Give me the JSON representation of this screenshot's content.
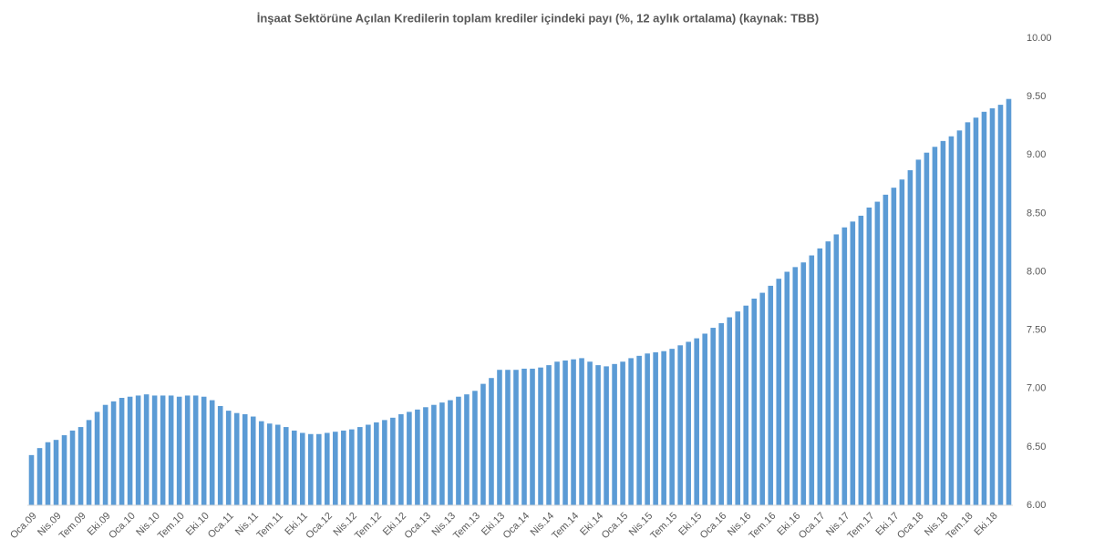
{
  "chart_data": {
    "type": "bar",
    "title": "İnşaat Sektörüne Açılan Kredilerin toplam krediler içindeki payı (%, 12 aylık ortalama) (kaynak: TBB)",
    "categories": [
      "Oca.09",
      null,
      null,
      "Nis.09",
      null,
      null,
      "Tem.09",
      null,
      null,
      "Eki.09",
      null,
      null,
      "Oca.10",
      null,
      null,
      "Nis.10",
      null,
      null,
      "Tem.10",
      null,
      null,
      "Eki.10",
      null,
      null,
      "Oca.11",
      null,
      null,
      "Nis.11",
      null,
      null,
      "Tem.11",
      null,
      null,
      "Eki.11",
      null,
      null,
      "Oca.12",
      null,
      null,
      "Nis.12",
      null,
      null,
      "Tem.12",
      null,
      null,
      "Eki.12",
      null,
      null,
      "Oca.13",
      null,
      null,
      "Nis.13",
      null,
      null,
      "Tem.13",
      null,
      null,
      "Eki.13",
      null,
      null,
      "Oca.14",
      null,
      null,
      "Nis.14",
      null,
      null,
      "Tem.14",
      null,
      null,
      "Eki.14",
      null,
      null,
      "Oca.15",
      null,
      null,
      "Nis.15",
      null,
      null,
      "Tem.15",
      null,
      null,
      "Eki.15",
      null,
      null,
      "Oca.16",
      null,
      null,
      "Nis.16",
      null,
      null,
      "Tem.16",
      null,
      null,
      "Eki.16",
      null,
      null,
      "Oca.17",
      null,
      null,
      "Nis.17",
      null,
      null,
      "Tem.17",
      null,
      null,
      "Eki.17",
      null,
      null,
      "Oca.18",
      null,
      null,
      "Nis.18",
      null,
      null,
      "Tem.18",
      null,
      null,
      "Eki.18",
      null,
      null
    ],
    "values": [
      6.43,
      6.49,
      6.54,
      6.56,
      6.6,
      6.64,
      6.67,
      6.73,
      6.8,
      6.86,
      6.89,
      6.92,
      6.93,
      6.94,
      6.95,
      6.94,
      6.94,
      6.94,
      6.93,
      6.94,
      6.94,
      6.93,
      6.9,
      6.85,
      6.81,
      6.79,
      6.78,
      6.76,
      6.72,
      6.7,
      6.69,
      6.67,
      6.64,
      6.62,
      6.61,
      6.61,
      6.62,
      6.63,
      6.64,
      6.65,
      6.67,
      6.69,
      6.71,
      6.73,
      6.75,
      6.78,
      6.8,
      6.82,
      6.84,
      6.86,
      6.88,
      6.9,
      6.93,
      6.95,
      6.98,
      7.04,
      7.09,
      7.16,
      7.16,
      7.16,
      7.17,
      7.17,
      7.18,
      7.2,
      7.23,
      7.24,
      7.25,
      7.26,
      7.23,
      7.2,
      7.19,
      7.21,
      7.23,
      7.26,
      7.28,
      7.3,
      7.31,
      7.32,
      7.34,
      7.37,
      7.4,
      7.43,
      7.47,
      7.52,
      7.56,
      7.61,
      7.66,
      7.71,
      7.77,
      7.82,
      7.88,
      7.94,
      8.0,
      8.04,
      8.08,
      8.14,
      8.2,
      8.26,
      8.32,
      8.38,
      8.43,
      8.48,
      8.55,
      8.6,
      8.66,
      8.72,
      8.79,
      8.87,
      8.96,
      9.02,
      9.07,
      9.12,
      9.16,
      9.21,
      9.28,
      9.32,
      9.37,
      9.4,
      9.43,
      9.48
    ],
    "color": "#5b9bd5",
    "ylim": [
      6,
      10
    ],
    "yticks": [
      {
        "value": 6,
        "label": "6.00"
      },
      {
        "value": 6.5,
        "label": "6.50"
      },
      {
        "value": 7,
        "label": "7.00"
      },
      {
        "value": 7.5,
        "label": "7.50"
      },
      {
        "value": 8,
        "label": "8.00"
      },
      {
        "value": 8.5,
        "label": "8.50"
      },
      {
        "value": 9,
        "label": "9.00"
      },
      {
        "value": 9.5,
        "label": "9.50"
      },
      {
        "value": 10,
        "label": "10.00"
      }
    ],
    "grid": false
  }
}
